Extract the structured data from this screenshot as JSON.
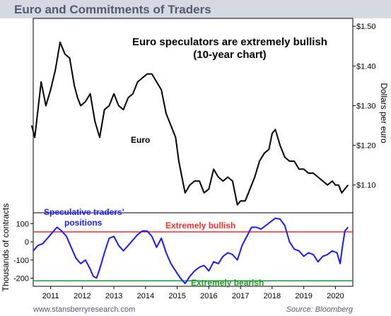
{
  "header": {
    "title": "Euro and Commitments of Traders"
  },
  "footer": {
    "website": "www.stansberryresearch.com",
    "source": "Source: Bloomberg"
  },
  "colors": {
    "title_bg": "#d6d8e2",
    "title_text": "#555a6e",
    "euro_line": "#000000",
    "cot_line": "#1a1aff",
    "bullish_line": "#ff2a2a",
    "bearish_line": "#1f9a2c",
    "axis": "#000000"
  },
  "chart_data": [
    {
      "type": "line",
      "title": "Euro speculators are extremely bullish (10-year chart)",
      "title_lines": [
        "Euro speculators are extremely bullish",
        "(10-year chart)"
      ],
      "ylabel": "Dollars per euro",
      "ylim": [
        1.03,
        1.52
      ],
      "y_ticks": [
        1.1,
        1.2,
        1.3,
        1.4,
        1.5
      ],
      "y_tick_labels": [
        "$1.10",
        "$1.20",
        "$1.30",
        "$1.40",
        "$1.50"
      ],
      "y_axis_side": "right",
      "grid": false,
      "series": [
        {
          "name": "Euro",
          "x": [
            2010.4,
            2010.5,
            2010.7,
            2010.85,
            2011.0,
            2011.15,
            2011.3,
            2011.45,
            2011.6,
            2011.75,
            2011.85,
            2011.95,
            2012.1,
            2012.25,
            2012.4,
            2012.55,
            2012.7,
            2012.85,
            2013.0,
            2013.15,
            2013.3,
            2013.45,
            2013.6,
            2013.75,
            2013.9,
            2014.05,
            2014.2,
            2014.35,
            2014.5,
            2014.65,
            2014.8,
            2014.95,
            2015.05,
            2015.15,
            2015.25,
            2015.4,
            2015.55,
            2015.7,
            2015.85,
            2016.0,
            2016.15,
            2016.3,
            2016.45,
            2016.6,
            2016.75,
            2016.9,
            2017.0,
            2017.15,
            2017.3,
            2017.45,
            2017.6,
            2017.75,
            2017.9,
            2018.0,
            2018.1,
            2018.25,
            2018.4,
            2018.55,
            2018.7,
            2018.85,
            2019.0,
            2019.15,
            2019.3,
            2019.45,
            2019.6,
            2019.75,
            2019.9,
            2020.0,
            2020.1,
            2020.2,
            2020.3,
            2020.4
          ],
          "values": [
            1.25,
            1.22,
            1.36,
            1.3,
            1.34,
            1.39,
            1.46,
            1.43,
            1.42,
            1.35,
            1.32,
            1.3,
            1.31,
            1.33,
            1.26,
            1.22,
            1.29,
            1.3,
            1.33,
            1.3,
            1.29,
            1.32,
            1.33,
            1.36,
            1.37,
            1.38,
            1.38,
            1.36,
            1.34,
            1.28,
            1.25,
            1.22,
            1.16,
            1.12,
            1.08,
            1.1,
            1.11,
            1.11,
            1.08,
            1.09,
            1.14,
            1.12,
            1.11,
            1.12,
            1.11,
            1.05,
            1.06,
            1.06,
            1.09,
            1.12,
            1.16,
            1.18,
            1.19,
            1.23,
            1.24,
            1.2,
            1.17,
            1.16,
            1.16,
            1.14,
            1.14,
            1.13,
            1.13,
            1.12,
            1.11,
            1.1,
            1.11,
            1.1,
            1.1,
            1.08,
            1.09,
            1.1
          ]
        }
      ],
      "annotations": [
        "Euro"
      ]
    },
    {
      "type": "line",
      "ylabel": "Thousands of contracts",
      "ylim": [
        -245,
        160
      ],
      "y_ticks": [
        100,
        0,
        -100,
        -200
      ],
      "y_tick_labels": [
        "100",
        "0",
        "-100",
        "-200"
      ],
      "y_axis_side": "left",
      "x_ticks": [
        2011,
        2012,
        2013,
        2014,
        2015,
        2016,
        2017,
        2018,
        2019,
        2020
      ],
      "x_tick_labels": [
        "2011",
        "2012",
        "2013",
        "2014",
        "2015",
        "2016",
        "2017",
        "2018",
        "2019",
        "2020"
      ],
      "xlim": [
        2010.45,
        2020.55
      ],
      "grid": false,
      "series": [
        {
          "name": "Speculative traders' positions",
          "x": [
            2010.45,
            2010.6,
            2010.75,
            2010.9,
            2011.05,
            2011.2,
            2011.35,
            2011.5,
            2011.65,
            2011.8,
            2011.95,
            2012.1,
            2012.25,
            2012.35,
            2012.45,
            2012.55,
            2012.7,
            2012.85,
            2013.0,
            2013.15,
            2013.3,
            2013.45,
            2013.6,
            2013.75,
            2013.9,
            2014.05,
            2014.2,
            2014.35,
            2014.5,
            2014.65,
            2014.8,
            2014.95,
            2015.1,
            2015.25,
            2015.4,
            2015.55,
            2015.7,
            2015.85,
            2016.0,
            2016.15,
            2016.3,
            2016.45,
            2016.6,
            2016.75,
            2016.9,
            2017.05,
            2017.2,
            2017.35,
            2017.5,
            2017.65,
            2017.8,
            2017.95,
            2018.1,
            2018.25,
            2018.4,
            2018.55,
            2018.7,
            2018.85,
            2019.0,
            2019.15,
            2019.3,
            2019.45,
            2019.6,
            2019.75,
            2019.9,
            2020.05,
            2020.15,
            2020.22,
            2020.3,
            2020.4
          ],
          "values": [
            -50,
            -20,
            -10,
            20,
            50,
            80,
            60,
            30,
            -30,
            -90,
            -120,
            -100,
            -150,
            -190,
            -200,
            -150,
            -60,
            20,
            30,
            -20,
            -50,
            -20,
            10,
            40,
            60,
            60,
            30,
            -30,
            20,
            -60,
            -120,
            -160,
            -200,
            -230,
            -190,
            -160,
            -140,
            -130,
            -160,
            -110,
            -120,
            -80,
            -60,
            -70,
            -100,
            -20,
            30,
            80,
            80,
            70,
            90,
            110,
            130,
            125,
            90,
            0,
            -40,
            -50,
            -80,
            -60,
            -70,
            -110,
            -80,
            -70,
            -50,
            -60,
            -120,
            -30,
            60,
            80
          ]
        }
      ],
      "reference_lines": [
        {
          "label": "Extremely bullish",
          "value": 55
        },
        {
          "label": "Extremely bearish",
          "value": -215
        }
      ]
    }
  ]
}
